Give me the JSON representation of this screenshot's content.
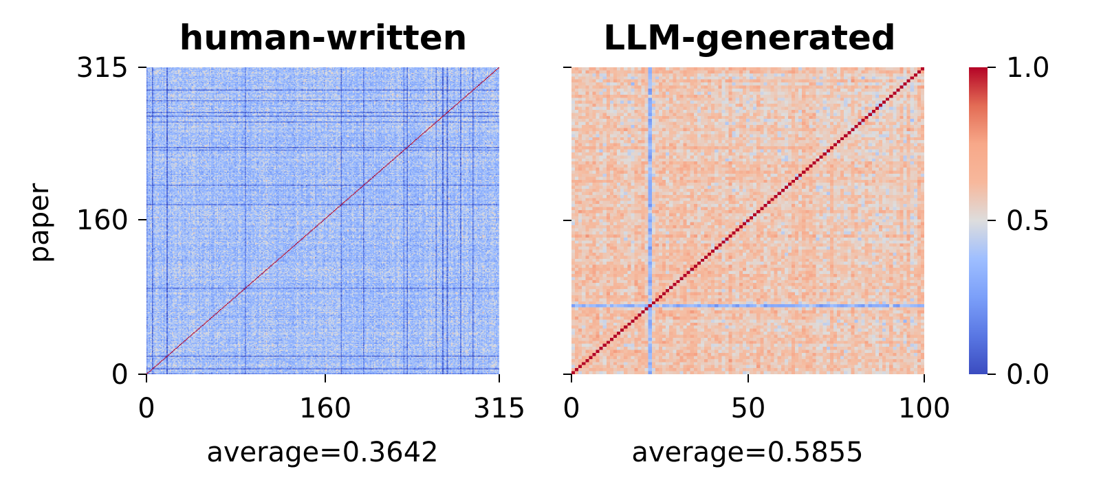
{
  "chart_data": [
    {
      "type": "heatmap",
      "title": "human-written",
      "ylabel": "paper",
      "xlabel": "average=0.3642",
      "average": 0.3642,
      "n": 316,
      "xlim": [
        0,
        315
      ],
      "ylim": [
        0,
        315
      ],
      "xticks": [
        "0",
        "160",
        "315"
      ],
      "yticks": [
        "0",
        "160",
        "315"
      ],
      "diagonal_value": 1.0,
      "value_range": [
        0.0,
        1.0
      ],
      "description_of_values": "pairwise similarity matrix, mostly 0.2-0.5 with dark low-similarity rows/columns"
    },
    {
      "type": "heatmap",
      "title": "LLM-generated",
      "ylabel": "",
      "xlabel": "average=0.5855",
      "average": 0.5855,
      "n": 101,
      "xlim": [
        0,
        100
      ],
      "ylim": [
        0,
        100
      ],
      "xticks": [
        "0",
        "50",
        "100"
      ],
      "yticks": [
        "",
        "",
        ""
      ],
      "diagonal_value": 1.0,
      "value_range": [
        0.0,
        1.0
      ]
    }
  ],
  "colorbar": {
    "colormap": "coolwarm",
    "min": 0.0,
    "max": 1.0,
    "ticks": [
      "0.0",
      "0.5",
      "1.0"
    ],
    "colors": [
      "#3b4cc0",
      "#dddddd",
      "#b40426"
    ]
  }
}
